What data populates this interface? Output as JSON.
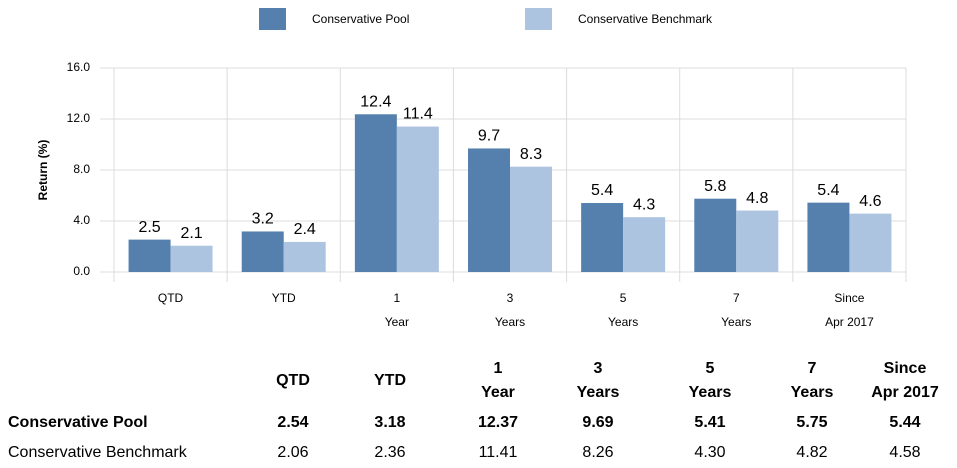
{
  "chart_data": {
    "type": "bar",
    "ylabel": "Return (%)",
    "categories": [
      [
        "QTD"
      ],
      [
        "YTD"
      ],
      [
        "1",
        "Year"
      ],
      [
        "3",
        "Years"
      ],
      [
        "5",
        "Years"
      ],
      [
        "7",
        "Years"
      ],
      [
        "Since",
        "Apr 2017"
      ]
    ],
    "series": [
      {
        "name": "Conservative Pool",
        "color": "#5580ad",
        "values": [
          2.54,
          3.18,
          12.37,
          9.69,
          5.41,
          5.75,
          5.44
        ],
        "value_labels": [
          "2.5",
          "3.2",
          "12.4",
          "9.7",
          "5.4",
          "5.8",
          "5.4"
        ]
      },
      {
        "name": "Conservative Benchmark",
        "color": "#adc4e0",
        "values": [
          2.06,
          2.36,
          11.41,
          8.26,
          4.3,
          4.82,
          4.58
        ],
        "value_labels": [
          "2.1",
          "2.4",
          "11.4",
          "8.3",
          "4.3",
          "4.8",
          "4.6"
        ]
      }
    ],
    "ylim": [
      0,
      16
    ],
    "yticks": [
      {
        "value": 0,
        "label": "0.0"
      },
      {
        "value": 4,
        "label": "4.0"
      },
      {
        "value": 8,
        "label": "8.0"
      },
      {
        "value": 12,
        "label": "12.0"
      },
      {
        "value": 16,
        "label": "16.0"
      }
    ],
    "grid": true,
    "legend": "top"
  },
  "table": {
    "header": [
      [
        "QTD"
      ],
      [
        "YTD"
      ],
      [
        "1",
        "Year"
      ],
      [
        "3",
        "Years"
      ],
      [
        "5",
        "Years"
      ],
      [
        "7",
        "Years"
      ],
      [
        "Since",
        "Apr 2017"
      ]
    ],
    "rows": [
      {
        "label": "Conservative Pool",
        "bold": true,
        "cells": [
          "2.54",
          "3.18",
          "12.37",
          "9.69",
          "5.41",
          "5.75",
          "5.44"
        ]
      },
      {
        "label": "Conservative Benchmark",
        "bold": false,
        "cells": [
          "2.06",
          "2.36",
          "11.41",
          "8.26",
          "4.30",
          "4.82",
          "4.58"
        ]
      }
    ]
  }
}
